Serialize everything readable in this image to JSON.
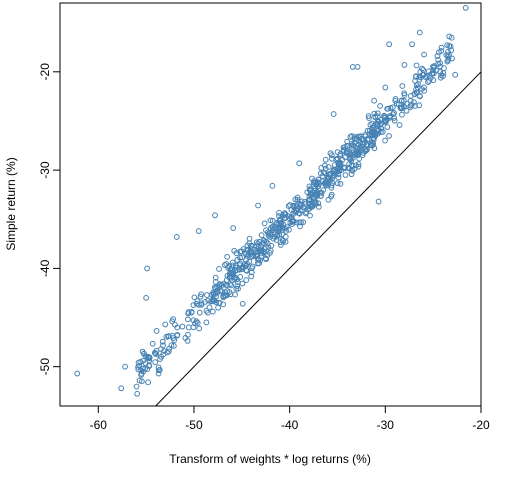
{
  "chart_data": {
    "type": "scatter",
    "title": "",
    "xlabel": "Transform of weights * log returns (%)",
    "ylabel": "Simple return (%)",
    "xlim": [
      -64,
      -20
    ],
    "ylim": [
      -54,
      -13
    ],
    "x_ticks": [
      -60,
      -50,
      -40,
      -30,
      -20
    ],
    "y_ticks": [
      -50,
      -40,
      -30,
      -20
    ],
    "x_tick_labels": [
      "-60",
      "-50",
      "-40",
      "-30",
      "-20"
    ],
    "y_tick_labels": [
      "-50",
      "-40",
      "-30",
      "-20"
    ],
    "reference_line": {
      "slope": 1,
      "intercept": 0,
      "label": ""
    },
    "point_color": "#4682b4",
    "grid": false,
    "highlight_points": [
      {
        "x": -62.2,
        "y": -50.7
      },
      {
        "x": -57.6,
        "y": -52.2
      },
      {
        "x": -57.2,
        "y": -50.0
      },
      {
        "x": -55.6,
        "y": -49.5
      },
      {
        "x": -55.3,
        "y": -50.5
      },
      {
        "x": -53.7,
        "y": -50.7
      },
      {
        "x": -54.9,
        "y": -40.0
      },
      {
        "x": -55.0,
        "y": -43.0
      },
      {
        "x": -53.0,
        "y": -45.7
      },
      {
        "x": -51.8,
        "y": -36.8
      },
      {
        "x": -49.5,
        "y": -36.2
      },
      {
        "x": -47.8,
        "y": -34.6
      },
      {
        "x": -45.9,
        "y": -35.9
      },
      {
        "x": -43.3,
        "y": -33.6
      },
      {
        "x": -41.8,
        "y": -31.6
      },
      {
        "x": -39.0,
        "y": -29.3
      },
      {
        "x": -35.4,
        "y": -24.3
      },
      {
        "x": -33.4,
        "y": -19.5
      },
      {
        "x": -32.9,
        "y": -19.5
      },
      {
        "x": -30.0,
        "y": -21.6
      },
      {
        "x": -29.6,
        "y": -17.2
      },
      {
        "x": -28.0,
        "y": -19.3
      },
      {
        "x": -27.2,
        "y": -17.2
      },
      {
        "x": -26.4,
        "y": -16.0
      },
      {
        "x": -24.2,
        "y": -20.6
      },
      {
        "x": -22.7,
        "y": -20.3
      },
      {
        "x": -21.6,
        "y": -13.5
      },
      {
        "x": -30.7,
        "y": -33.2
      },
      {
        "x": -33.5,
        "y": -30.0
      },
      {
        "x": -44.9,
        "y": -43.6
      },
      {
        "x": -48.7,
        "y": -45.5
      }
    ],
    "cloud": {
      "n": 760,
      "x_range": [
        -56,
        -23
      ],
      "y_minus_x_mean": 2.55,
      "y_minus_x_sd": 1.8,
      "seed": 7
    }
  }
}
